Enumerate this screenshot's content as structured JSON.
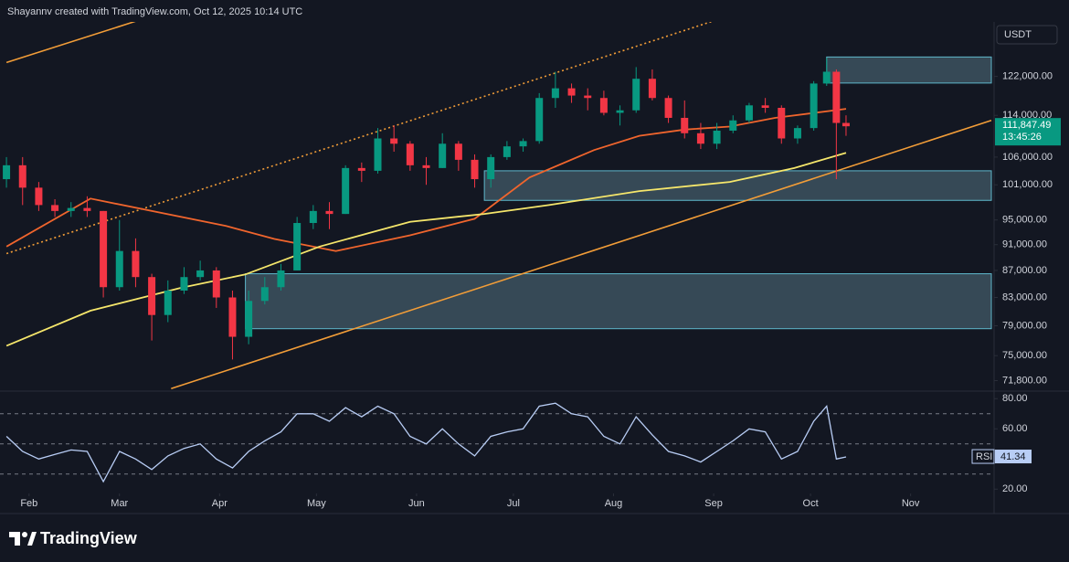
{
  "header": {
    "text": "Shayannv created with TradingView.com, Oct 12, 2025 10:14 UTC"
  },
  "footer": {
    "brand": "TradingView"
  },
  "chart_data": [
    {
      "type": "candlestick",
      "unit": "USDT",
      "log": true,
      "xlim": [
        "2025-01-23",
        "2025-11-26"
      ],
      "xticks": [
        {
          "value": "2025-02-01",
          "label": "Feb"
        },
        {
          "value": "2025-03-01",
          "label": "Mar"
        },
        {
          "value": "2025-04-01",
          "label": "Apr"
        },
        {
          "value": "2025-05-01",
          "label": "May"
        },
        {
          "value": "2025-06-01",
          "label": "Jun"
        },
        {
          "value": "2025-07-01",
          "label": "Jul"
        },
        {
          "value": "2025-08-01",
          "label": "Aug"
        },
        {
          "value": "2025-09-01",
          "label": "Sep"
        },
        {
          "value": "2025-10-01",
          "label": "Oct"
        },
        {
          "value": "2025-11-01",
          "label": "Nov"
        }
      ],
      "ylim": [
        70500,
        133300
      ],
      "yticks": [
        {
          "value": 122000,
          "label": "122,000.00"
        },
        {
          "value": 114000,
          "label": "114,000.00"
        },
        {
          "value": 106000,
          "label": "106,000.00"
        },
        {
          "value": 101000,
          "label": "101,000.00"
        },
        {
          "value": 95000,
          "label": "95,000.00"
        },
        {
          "value": 91000,
          "label": "91,000.00"
        },
        {
          "value": 87000,
          "label": "87,000.00"
        },
        {
          "value": 83000,
          "label": "83,000.00"
        },
        {
          "value": 79000,
          "label": "79,000.00"
        },
        {
          "value": 75000,
          "label": "75,000.00"
        },
        {
          "value": 71800,
          "label": "71,800.00"
        }
      ],
      "up_color": "#089981",
      "down_color": "#f23645",
      "x": [
        "2025-01-25",
        "2025-01-30",
        "2025-02-04",
        "2025-02-09",
        "2025-02-14",
        "2025-02-19",
        "2025-02-24",
        "2025-03-01",
        "2025-03-06",
        "2025-03-11",
        "2025-03-16",
        "2025-03-21",
        "2025-03-26",
        "2025-03-31",
        "2025-04-05",
        "2025-04-10",
        "2025-04-15",
        "2025-04-20",
        "2025-04-25",
        "2025-04-30",
        "2025-05-05",
        "2025-05-10",
        "2025-05-15",
        "2025-05-20",
        "2025-05-25",
        "2025-05-30",
        "2025-06-04",
        "2025-06-09",
        "2025-06-14",
        "2025-06-19",
        "2025-06-24",
        "2025-06-29",
        "2025-07-04",
        "2025-07-09",
        "2025-07-14",
        "2025-07-19",
        "2025-07-24",
        "2025-07-29",
        "2025-08-03",
        "2025-08-08",
        "2025-08-13",
        "2025-08-18",
        "2025-08-23",
        "2025-08-28",
        "2025-09-02",
        "2025-09-07",
        "2025-09-12",
        "2025-09-17",
        "2025-09-22",
        "2025-09-27",
        "2025-10-02",
        "2025-10-06",
        "2025-10-09",
        "2025-10-12"
      ],
      "open": [
        102000,
        104500,
        100500,
        97500,
        96500,
        97000,
        96500,
        84500,
        90000,
        86000,
        80500,
        84000,
        86000,
        87000,
        83000,
        77500,
        82500,
        84500,
        87000,
        94500,
        96500,
        96000,
        104000,
        103500,
        109500,
        108500,
        104500,
        104000,
        108500,
        105500,
        102000,
        106000,
        108000,
        109000,
        117500,
        119500,
        118000,
        117500,
        114500,
        115000,
        121500,
        117500,
        113500,
        110500,
        108500,
        111000,
        113000,
        116000,
        115500,
        109500,
        111500,
        120500,
        123000,
        112500
      ],
      "high": [
        106000,
        106000,
        101500,
        98500,
        98000,
        99000,
        96500,
        95000,
        92000,
        86500,
        85500,
        87500,
        88500,
        87500,
        84000,
        84000,
        86000,
        88000,
        95500,
        97500,
        98000,
        104500,
        105000,
        111500,
        112000,
        109000,
        106000,
        110500,
        109000,
        106500,
        106500,
        109000,
        109500,
        118500,
        123000,
        120500,
        119500,
        119000,
        116000,
        124000,
        123500,
        118000,
        117000,
        112500,
        112500,
        114000,
        116500,
        117500,
        116000,
        112000,
        121000,
        126000,
        123500,
        114000
      ],
      "low": [
        100500,
        97500,
        96500,
        95500,
        95500,
        95500,
        83000,
        84000,
        84500,
        77000,
        79500,
        83500,
        85500,
        81500,
        74500,
        76500,
        82000,
        84000,
        87000,
        93500,
        93500,
        96000,
        101500,
        103000,
        107000,
        103500,
        101000,
        104000,
        103500,
        100500,
        100500,
        105500,
        107000,
        108500,
        115500,
        116500,
        115000,
        114000,
        112000,
        114500,
        117000,
        112500,
        109500,
        107500,
        107500,
        110500,
        112500,
        114500,
        108500,
        108500,
        111000,
        120000,
        102000,
        110000
      ],
      "close": [
        104500,
        100500,
        97500,
        96500,
        97000,
        96500,
        84500,
        90000,
        86000,
        80500,
        84000,
        86000,
        87000,
        83000,
        77500,
        82500,
        84500,
        87000,
        94500,
        96500,
        96000,
        104000,
        103500,
        109500,
        108500,
        104500,
        104000,
        108500,
        105500,
        102000,
        106000,
        108000,
        109000,
        117500,
        119500,
        118000,
        117500,
        114500,
        115000,
        121500,
        117500,
        113500,
        110500,
        108500,
        111000,
        113000,
        116000,
        115500,
        109500,
        111500,
        120500,
        123000,
        112500,
        111847.49
      ],
      "last_price": {
        "value": 111847.49,
        "label": "111,847.49"
      },
      "countdown": "13:45:26",
      "overlays": [
        {
          "color": "#f0652d",
          "x": [
            "2025-01-25",
            "2025-02-20",
            "2025-04-03",
            "2025-04-18",
            "2025-05-07",
            "2025-05-30",
            "2025-06-19",
            "2025-07-06",
            "2025-07-26",
            "2025-08-09",
            "2025-08-23",
            "2025-09-06",
            "2025-09-20",
            "2025-10-12"
          ],
          "values": [
            90700,
            98600,
            94000,
            91900,
            90000,
            92500,
            95200,
            102300,
            107300,
            110000,
            111200,
            111800,
            113500,
            115300
          ]
        },
        {
          "color": "#f5e66b",
          "x": [
            "2025-01-25",
            "2025-02-20",
            "2025-03-20",
            "2025-04-09",
            "2025-05-02",
            "2025-05-30",
            "2025-06-22",
            "2025-07-12",
            "2025-08-09",
            "2025-09-06",
            "2025-09-26",
            "2025-10-12"
          ],
          "values": [
            76300,
            81100,
            84400,
            86400,
            90700,
            94700,
            96000,
            97500,
            99900,
            101500,
            104000,
            106800
          ]
        }
      ],
      "trendlines": [
        {
          "color": "#f29d38",
          "dashed": false,
          "x": [
            "2025-03-17",
            "2025-11-26"
          ],
          "values": [
            70800,
            113000
          ]
        },
        {
          "color": "#f29d38",
          "dashed": false,
          "x": [
            "2025-01-25",
            "2025-03-06"
          ],
          "values": [
            125000,
            134300
          ]
        },
        {
          "color": "#f29d38",
          "dashed": true,
          "x": [
            "2025-01-25",
            "2025-09-03"
          ],
          "values": [
            89600,
            134900
          ]
        }
      ],
      "zones": [
        {
          "start": "2025-10-06",
          "top": 126200,
          "bottom": 120600
        },
        {
          "start": "2025-06-22",
          "top": 103500,
          "bottom": 98300
        },
        {
          "start": "2025-04-09",
          "top": 86500,
          "bottom": 78600
        }
      ]
    },
    {
      "type": "line",
      "label": "RSI",
      "color": "#b8cdf5",
      "x": [
        "2025-01-25",
        "2025-01-30",
        "2025-02-04",
        "2025-02-09",
        "2025-02-14",
        "2025-02-19",
        "2025-02-24",
        "2025-03-01",
        "2025-03-06",
        "2025-03-11",
        "2025-03-16",
        "2025-03-21",
        "2025-03-26",
        "2025-03-31",
        "2025-04-05",
        "2025-04-10",
        "2025-04-15",
        "2025-04-20",
        "2025-04-25",
        "2025-04-30",
        "2025-05-05",
        "2025-05-10",
        "2025-05-15",
        "2025-05-20",
        "2025-05-25",
        "2025-05-30",
        "2025-06-04",
        "2025-06-09",
        "2025-06-14",
        "2025-06-19",
        "2025-06-24",
        "2025-06-29",
        "2025-07-04",
        "2025-07-09",
        "2025-07-14",
        "2025-07-19",
        "2025-07-24",
        "2025-07-29",
        "2025-08-03",
        "2025-08-08",
        "2025-08-13",
        "2025-08-18",
        "2025-08-23",
        "2025-08-28",
        "2025-09-02",
        "2025-09-07",
        "2025-09-12",
        "2025-09-17",
        "2025-09-22",
        "2025-09-27",
        "2025-10-02",
        "2025-10-06",
        "2025-10-09",
        "2025-10-12"
      ],
      "values": [
        55,
        45,
        40,
        43,
        46,
        45,
        25,
        45,
        40,
        33,
        42,
        47,
        50,
        40,
        34,
        45,
        52,
        58,
        70,
        70,
        65,
        74,
        68,
        75,
        70,
        55,
        50,
        60,
        50,
        42,
        55,
        58,
        60,
        75,
        77,
        70,
        68,
        55,
        50,
        68,
        56,
        45,
        42,
        38,
        45,
        52,
        60,
        58,
        40,
        45,
        65,
        75,
        40,
        41.34
      ],
      "last_value": {
        "value": 41.34,
        "label": "41.34"
      },
      "ylim": [
        5,
        85
      ],
      "yticks": [
        {
          "value": 80,
          "label": "80.00"
        },
        {
          "value": 60,
          "label": "60.00"
        },
        {
          "value": 20,
          "label": "20.00"
        }
      ],
      "levels": [
        70,
        50,
        30
      ]
    }
  ]
}
